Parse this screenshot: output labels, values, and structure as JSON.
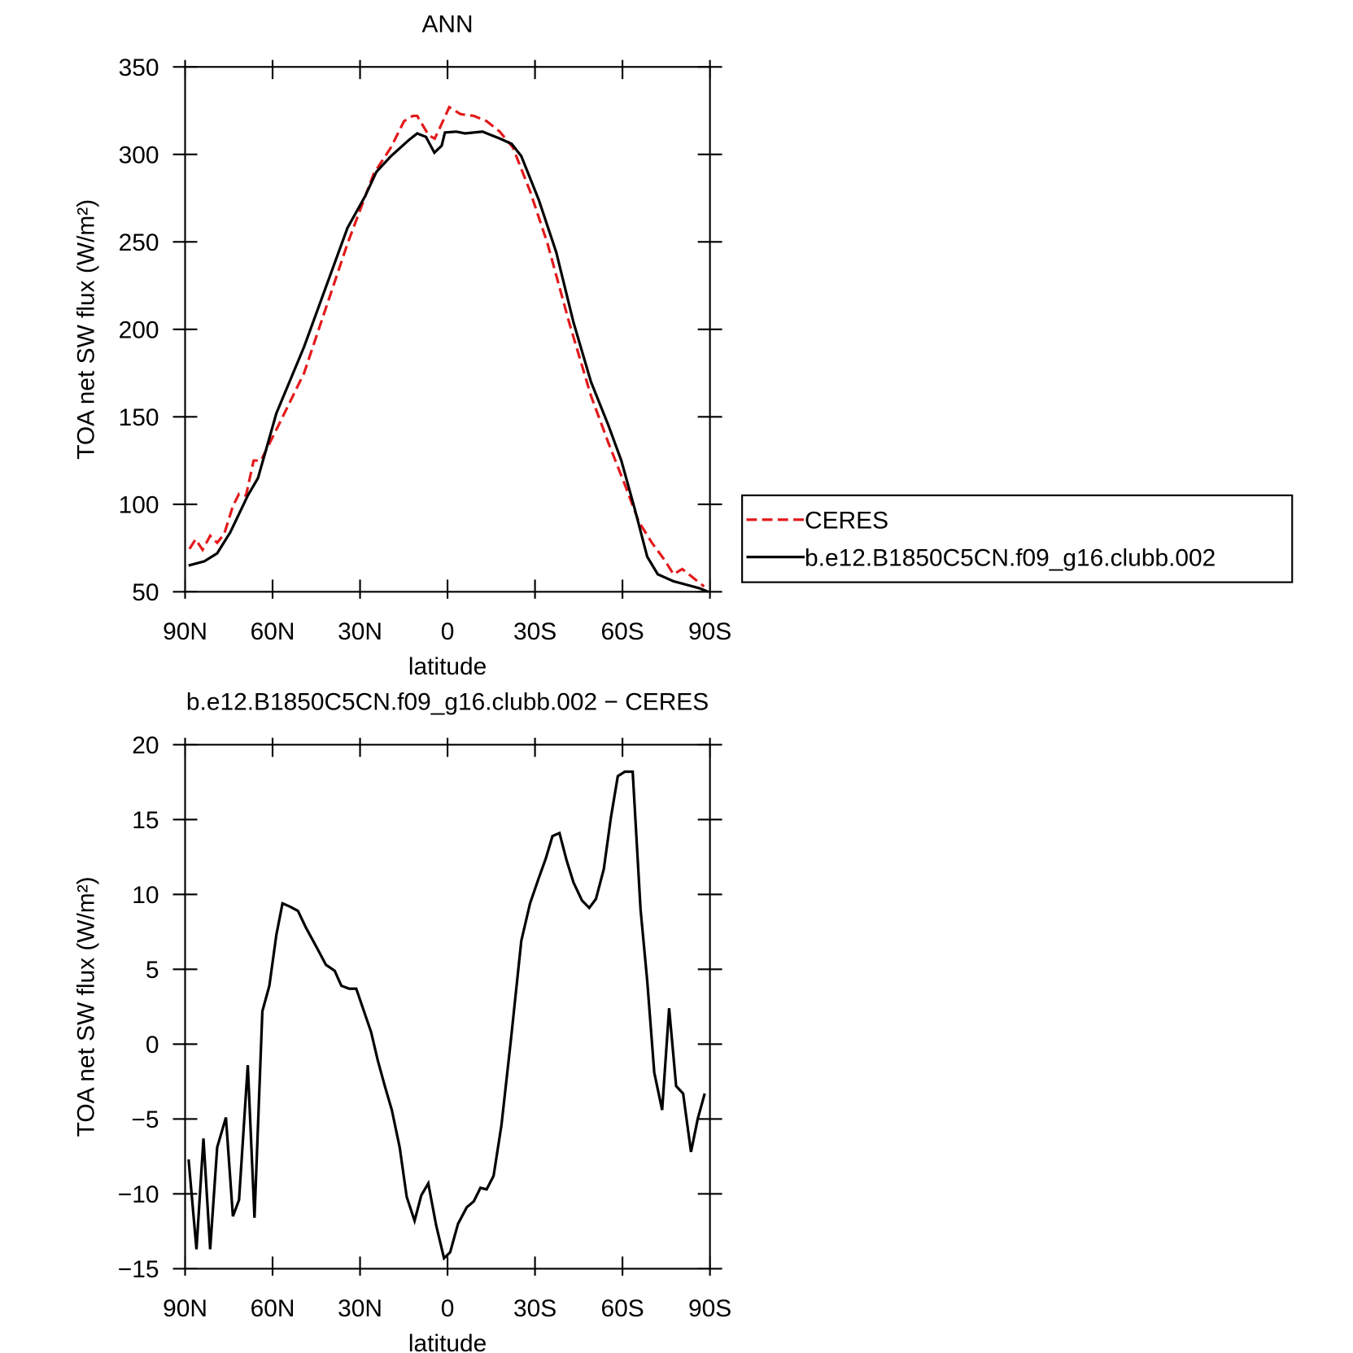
{
  "chart_data": [
    {
      "type": "line",
      "title": "ANN",
      "xlabel": "latitude",
      "ylabel": "TOA net SW flux (W/m²)",
      "xlim": [
        90,
        -90
      ],
      "xticks": [
        {
          "value": 90,
          "label": "90N"
        },
        {
          "value": 60,
          "label": "60N"
        },
        {
          "value": 30,
          "label": "30N"
        },
        0,
        {
          "value": -30,
          "label": "30S"
        },
        {
          "value": -60,
          "label": "60S"
        },
        {
          "value": -90,
          "label": "90S"
        }
      ],
      "ylim": [
        50,
        350
      ],
      "yticks": [
        50,
        100,
        150,
        200,
        250,
        300,
        350
      ],
      "legend": "right",
      "series": [
        {
          "name": "CERES",
          "color": "#e31a1c",
          "linestyle": "dashed",
          "x": [
            88.5,
            86.4,
            84,
            81.4,
            79,
            76.6,
            73.6,
            71.5,
            69.1,
            66.5,
            64,
            58,
            49.2,
            34.3,
            25.3,
            19.4,
            14.9,
            11.9,
            10.4,
            6.5,
            4.4,
            2.4,
            -0.6,
            -4.5,
            -9,
            -13.4,
            -17.9,
            -22.4,
            -28.3,
            -34.3,
            -41.7,
            -49.2,
            -55.2,
            -61.1,
            -65.6,
            -70.1,
            -74.5,
            -77.5,
            -80.5,
            -83.5,
            -88
          ],
          "values": [
            74.5,
            80,
            74,
            82,
            78,
            83,
            99,
            106,
            105,
            125,
            125,
            145,
            175,
            249,
            289,
            304,
            319,
            322,
            322,
            311,
            309,
            316,
            327,
            323,
            322,
            319,
            313,
            304,
            279,
            249,
            204,
            162,
            135,
            110,
            90,
            78,
            68,
            60,
            63,
            59,
            53
          ]
        },
        {
          "name": "b.e12.B1850C5CN.f09_g16.clubb.002",
          "color": "#000000",
          "linestyle": "solid",
          "x": [
            88.8,
            83.4,
            79,
            74.5,
            68.5,
            65,
            58.7,
            49.2,
            34.3,
            28.3,
            24.4,
            19.4,
            13.4,
            10.4,
            7.4,
            4.5,
            2,
            0.9,
            -3,
            -6,
            -12,
            -15,
            -18,
            -22,
            -25.3,
            -31.3,
            -37.3,
            -43.2,
            -49.2,
            -55.2,
            -59.6,
            -64.1,
            -68.5,
            -72.1,
            -77.5,
            -82,
            -86.4,
            -89.4
          ],
          "values": [
            65,
            67.4,
            72,
            84,
            105,
            115,
            152,
            190,
            258,
            276,
            290,
            299,
            308,
            312,
            310,
            301,
            305,
            312.5,
            313,
            312,
            313,
            311,
            309,
            306,
            299,
            274,
            244,
            204,
            170,
            145,
            125,
            98,
            70,
            60,
            56,
            54,
            52,
            50
          ]
        }
      ]
    },
    {
      "type": "line",
      "title": "b.e12.B1850C5CN.f09_g16.clubb.002 − CERES",
      "xlabel": "latitude",
      "ylabel": "TOA net SW flux (W/m²)",
      "xlim": [
        90,
        -90
      ],
      "xticks": [
        {
          "value": 90,
          "label": "90N"
        },
        {
          "value": 60,
          "label": "60N"
        },
        {
          "value": 30,
          "label": "30N"
        },
        0,
        {
          "value": -30,
          "label": "30S"
        },
        {
          "value": -60,
          "label": "60S"
        },
        {
          "value": -90,
          "label": "90S"
        }
      ],
      "ylim": [
        -15,
        20
      ],
      "yticks": [
        {
          "value": -15,
          "label": "−15"
        },
        {
          "value": -10,
          "label": "−10"
        },
        {
          "value": -5,
          "label": "−5"
        },
        0,
        5,
        10,
        15,
        20
      ],
      "series": [
        {
          "color": "#000000",
          "linestyle": "solid",
          "x": [
            88.8,
            86.1,
            83.7,
            81.4,
            79,
            76,
            73.6,
            71.5,
            68.5,
            66.2,
            63.5,
            61.1,
            58.7,
            56.6,
            54.2,
            51.3,
            48.6,
            44.7,
            41.7,
            38.7,
            36.4,
            33.7,
            31.3,
            26.2,
            23.9,
            21.5,
            19.1,
            16.4,
            14,
            11.3,
            9,
            6.6,
            3.9,
            1.2,
            -0.9,
            -3.6,
            -6.6,
            -9,
            -11.3,
            -13.4,
            -15.8,
            -18.5,
            -21.8,
            -25.3,
            -28.3,
            -31.3,
            -33.7,
            -36,
            -38.4,
            -40.8,
            -43.2,
            -46.1,
            -48.6,
            -50.9,
            -53.6,
            -56,
            -58.4,
            -60.8,
            -63.5,
            -66.2,
            -68.5,
            -70.9,
            -73.6,
            -76,
            -78.4,
            -80.8,
            -83.5,
            -85.8,
            -88.2
          ],
          "values": [
            -7.7,
            -13.7,
            -6.3,
            -13.7,
            -6.9,
            -4.9,
            -11.5,
            -10.4,
            -1.4,
            -11.6,
            2.2,
            3.9,
            7.3,
            9.4,
            9.2,
            8.9,
            7.8,
            6.4,
            5.3,
            4.9,
            3.9,
            3.7,
            3.7,
            0.8,
            -1.1,
            -2.8,
            -4.4,
            -6.9,
            -10.2,
            -11.8,
            -10.1,
            -9.3,
            -12.1,
            -14.3,
            -13.9,
            -12,
            -10.9,
            -10.5,
            -9.6,
            -9.7,
            -8.8,
            -5.4,
            0.4,
            6.9,
            9.4,
            11.1,
            12.4,
            13.9,
            14.1,
            12.3,
            10.8,
            9.6,
            9.1,
            9.7,
            11.7,
            15.1,
            17.9,
            18.2,
            18.2,
            9,
            4.2,
            -1.9,
            -4.4,
            2.4,
            -2.8,
            -3.3,
            -7.2,
            -5,
            -3.3
          ]
        }
      ]
    }
  ]
}
